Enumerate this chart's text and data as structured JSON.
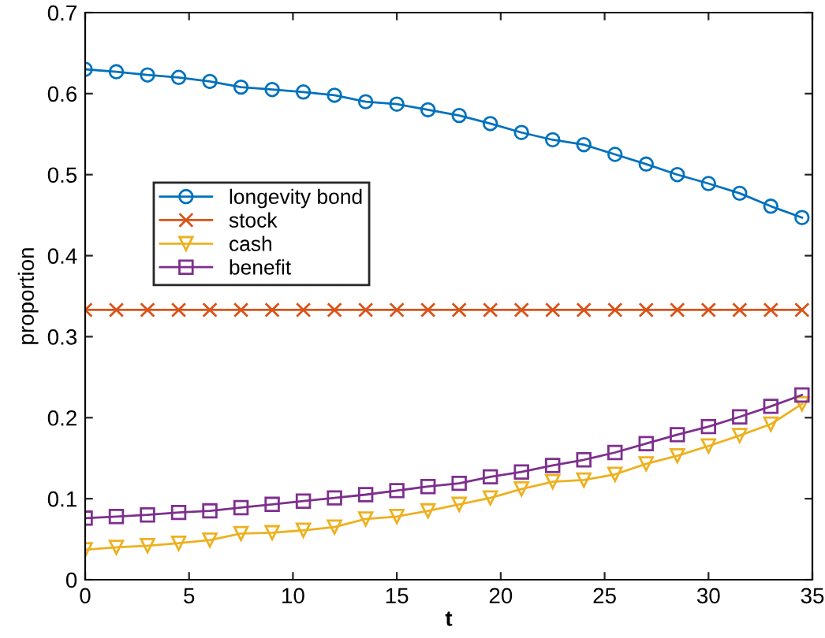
{
  "chart_data": {
    "type": "line",
    "xlabel": "t",
    "ylabel": "proportion",
    "x": [
      0,
      1.5,
      3,
      4.5,
      6,
      7.5,
      9,
      10.5,
      12,
      13.5,
      15,
      16.5,
      18,
      19.5,
      21,
      22.5,
      24,
      25.5,
      27,
      28.5,
      30,
      31.5,
      33,
      34.5
    ],
    "series": [
      {
        "name": "longevity bond",
        "color": "#0072bd",
        "marker": "circle",
        "values": [
          0.63,
          0.627,
          0.623,
          0.62,
          0.615,
          0.608,
          0.605,
          0.602,
          0.598,
          0.59,
          0.587,
          0.58,
          0.573,
          0.563,
          0.552,
          0.543,
          0.537,
          0.525,
          0.513,
          0.5,
          0.489,
          0.477,
          0.461,
          0.447
        ]
      },
      {
        "name": "stock",
        "color": "#d95319",
        "marker": "cross",
        "values": [
          0.333,
          0.333,
          0.333,
          0.333,
          0.333,
          0.333,
          0.333,
          0.333,
          0.333,
          0.333,
          0.333,
          0.333,
          0.333,
          0.333,
          0.333,
          0.333,
          0.333,
          0.333,
          0.333,
          0.333,
          0.333,
          0.333,
          0.333,
          0.333
        ]
      },
      {
        "name": "cash",
        "color": "#edb120",
        "marker": "triangle",
        "values": [
          0.037,
          0.04,
          0.042,
          0.045,
          0.049,
          0.057,
          0.058,
          0.061,
          0.065,
          0.075,
          0.078,
          0.085,
          0.093,
          0.101,
          0.112,
          0.121,
          0.123,
          0.13,
          0.143,
          0.153,
          0.165,
          0.178,
          0.192,
          0.217
        ]
      },
      {
        "name": "benefit",
        "color": "#7e2f8e",
        "marker": "square",
        "values": [
          0.076,
          0.078,
          0.08,
          0.083,
          0.085,
          0.089,
          0.093,
          0.097,
          0.101,
          0.105,
          0.11,
          0.115,
          0.119,
          0.127,
          0.133,
          0.141,
          0.148,
          0.157,
          0.168,
          0.179,
          0.189,
          0.201,
          0.214,
          0.228
        ]
      }
    ],
    "xlim": [
      0,
      35
    ],
    "xticks": [
      0,
      5,
      10,
      15,
      20,
      25,
      30,
      35
    ],
    "ylim": [
      0,
      0.7
    ],
    "yticks": [
      0,
      0.1,
      0.2,
      0.3,
      0.4,
      0.5,
      0.6,
      0.7
    ],
    "grid": false,
    "legend": "left",
    "line_style": "solid"
  }
}
